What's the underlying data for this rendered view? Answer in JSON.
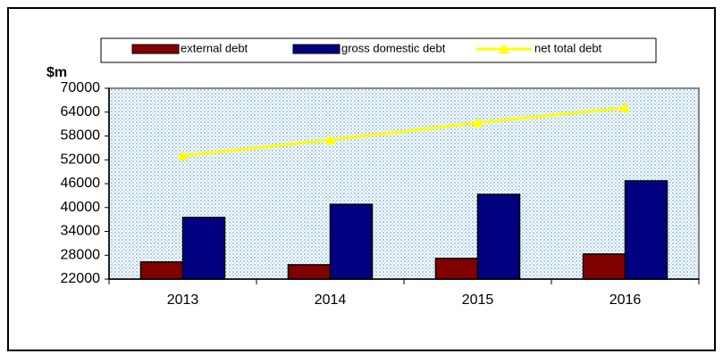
{
  "chart_data": {
    "type": "bar",
    "y_label": "$m",
    "categories": [
      "2013",
      "2014",
      "2015",
      "2016"
    ],
    "series": [
      {
        "name": "external debt",
        "type": "bar",
        "color": "#800000",
        "values": [
          26300,
          25600,
          27200,
          28300
        ]
      },
      {
        "name": "gross domestic debt",
        "type": "bar",
        "color": "#000080",
        "values": [
          37500,
          40800,
          43300,
          46700
        ]
      },
      {
        "name": "net total debt",
        "type": "line",
        "color": "#ffff00",
        "values": [
          53000,
          57000,
          61300,
          65100
        ]
      }
    ],
    "ylim": [
      22000,
      70000
    ],
    "yticks": [
      22000,
      28000,
      34000,
      40000,
      46000,
      52000,
      58000,
      64000,
      70000
    ],
    "legend": "top"
  }
}
